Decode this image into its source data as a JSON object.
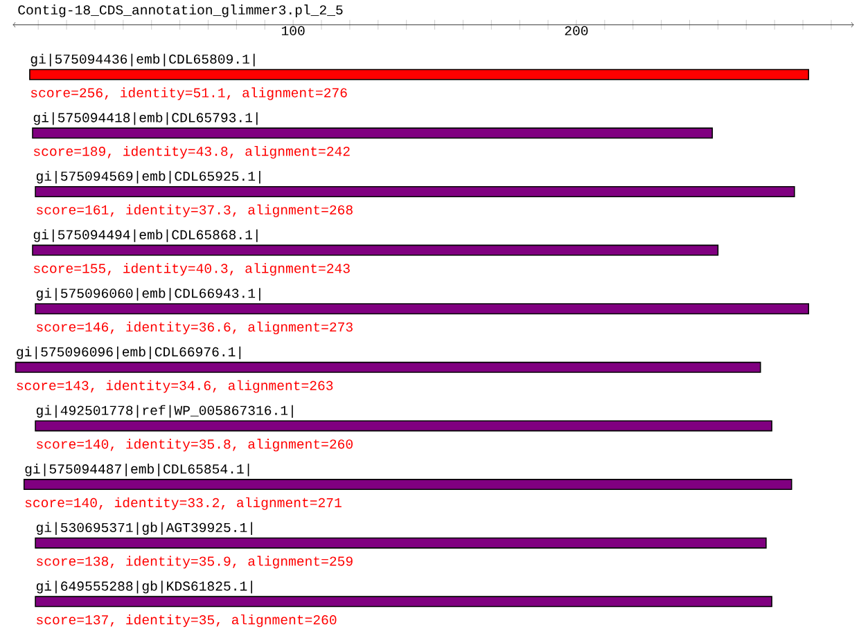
{
  "chart_data": {
    "type": "bar",
    "orientation": "horizontal",
    "title": "Contig-18_CDS_annotation_glimmer3.pl_2_5",
    "categories": [
      "gi|575094436|emb|CDL65809.1|",
      "gi|575094418|emb|CDL65793.1|",
      "gi|575094569|emb|CDL65925.1|",
      "gi|575094494|emb|CDL65868.1|",
      "gi|575096060|emb|CDL66943.1|",
      "gi|575096096|emb|CDL66976.1|",
      "gi|492501778|ref|WP_005867316.1|",
      "gi|575094487|emb|CDL65854.1|",
      "gi|530695371|gb|AGT39925.1|",
      "gi|649555288|gb|KDS61825.1|"
    ],
    "base": [
      7,
      8,
      9,
      8,
      9,
      2,
      9,
      5,
      9,
      9
    ],
    "values": [
      275,
      240,
      268,
      242,
      273,
      263,
      260,
      271,
      258,
      260
    ],
    "colors": [
      "#ff0000",
      "#800080",
      "#800080",
      "#800080",
      "#800080",
      "#800080",
      "#800080",
      "#800080",
      "#800080",
      "#800080"
    ],
    "xlim": [
      1,
      298
    ],
    "xticks": [
      {
        "value": 10,
        "label": null
      },
      {
        "value": 20,
        "label": null
      },
      {
        "value": 30,
        "label": null
      },
      {
        "value": 40,
        "label": null
      },
      {
        "value": 50,
        "label": null
      },
      {
        "value": 60,
        "label": null
      },
      {
        "value": 70,
        "label": null
      },
      {
        "value": 80,
        "label": null
      },
      {
        "value": 90,
        "label": null
      },
      100,
      {
        "value": 110,
        "label": null
      },
      {
        "value": 120,
        "label": null
      },
      {
        "value": 130,
        "label": null
      },
      {
        "value": 140,
        "label": null
      },
      {
        "value": 150,
        "label": null
      },
      {
        "value": 160,
        "label": null
      },
      {
        "value": 170,
        "label": null
      },
      {
        "value": 180,
        "label": null
      },
      {
        "value": 190,
        "label": null
      },
      200,
      {
        "value": 210,
        "label": null
      },
      {
        "value": 220,
        "label": null
      },
      {
        "value": 230,
        "label": null
      },
      {
        "value": 240,
        "label": null
      },
      {
        "value": 250,
        "label": null
      },
      {
        "value": 260,
        "label": null
      },
      {
        "value": 270,
        "label": null
      },
      {
        "value": 280,
        "label": null
      },
      {
        "value": 290,
        "label": null
      }
    ],
    "annotations": [
      "score=256, identity=51.1, alignment=276",
      "score=189, identity=43.8, alignment=242",
      "score=161, identity=37.3, alignment=268",
      "score=155, identity=40.3, alignment=243",
      "score=146, identity=36.6, alignment=273",
      "score=143, identity=34.6, alignment=263",
      "score=140, identity=35.8, alignment=260",
      "score=140, identity=33.2, alignment=271",
      "score=138, identity=35.9, alignment=259",
      "score=137, identity=35, alignment=260"
    ]
  }
}
